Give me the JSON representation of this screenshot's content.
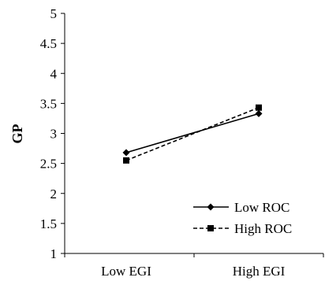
{
  "chart_data": {
    "type": "line",
    "categories": [
      "Low EGI",
      "High EGI"
    ],
    "series": [
      {
        "name": "Low ROC",
        "values": [
          2.68,
          3.33
        ],
        "line_style": "solid",
        "marker": "diamond",
        "color": "#000000"
      },
      {
        "name": "High ROC",
        "values": [
          2.55,
          3.43
        ],
        "line_style": "dashed",
        "marker": "square",
        "color": "#000000"
      }
    ],
    "ylabel": "GP",
    "ylim": [
      1,
      5
    ],
    "yticks": [
      "1",
      "1.5",
      "2",
      "2.5",
      "3",
      "3.5",
      "4",
      "4.5",
      "5"
    ],
    "grid": false,
    "legend_position": "bottom-right"
  }
}
